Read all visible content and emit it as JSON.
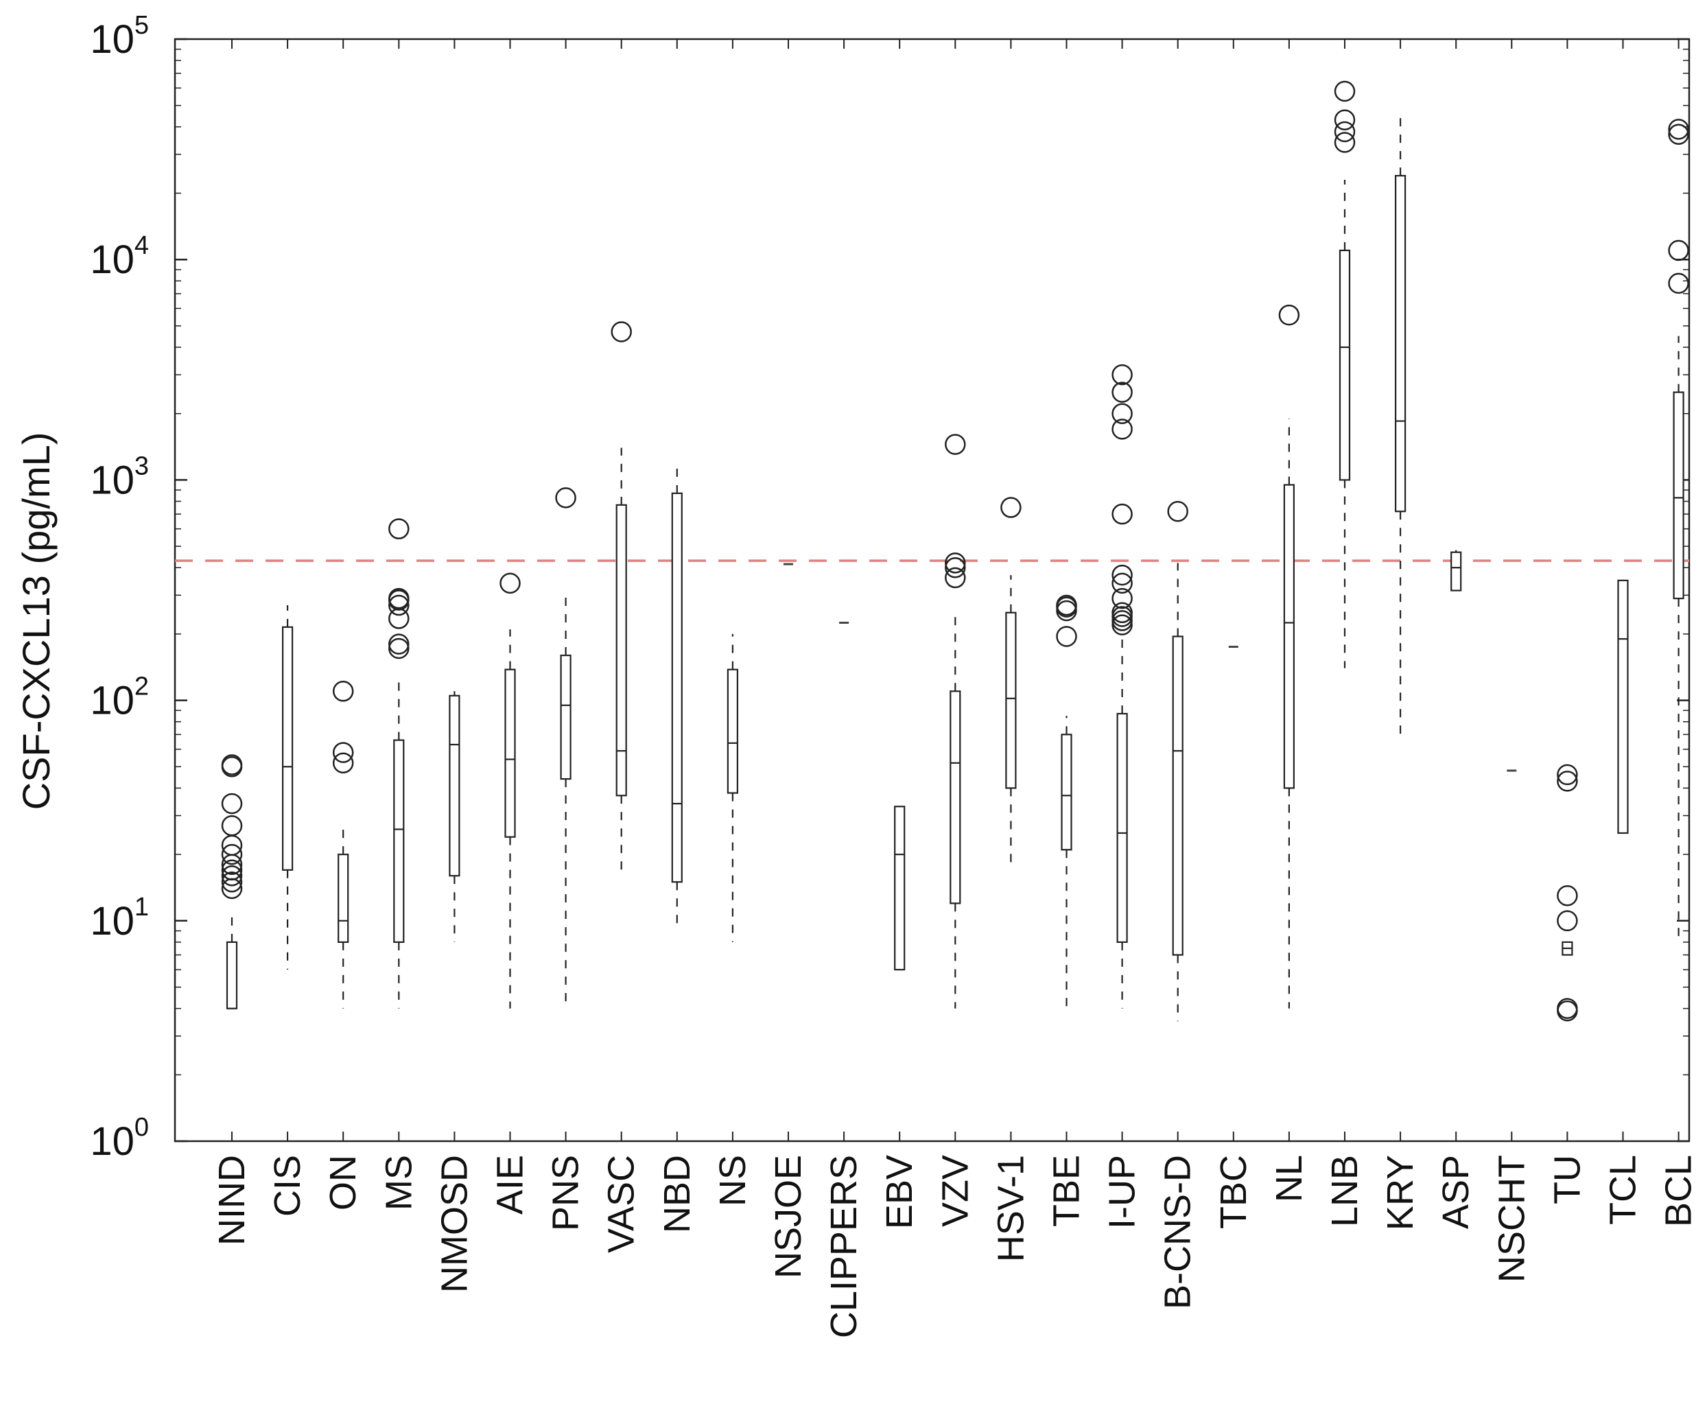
{
  "chart_data": {
    "type": "box",
    "title": "",
    "xlabel": "",
    "ylabel": "CSF-CXCL13 (pg/mL)",
    "yscale": "log",
    "ylim": [
      1,
      100000
    ],
    "ytick_labels": [
      {
        "base": "10",
        "exp": "0"
      },
      {
        "base": "10",
        "exp": "1"
      },
      {
        "base": "10",
        "exp": "2"
      },
      {
        "base": "10",
        "exp": "3"
      },
      {
        "base": "10",
        "exp": "4"
      },
      {
        "base": "10",
        "exp": "5"
      }
    ],
    "grid": false,
    "reference_line": {
      "y": 430,
      "color": "#e08080",
      "style": "dashed"
    },
    "categories": [
      "NIND",
      "CIS",
      "ON",
      "MS",
      "NMOSD",
      "AIE",
      "PNS",
      "VASC",
      "NBD",
      "NS",
      "NSJOE",
      "CLIPPERS",
      "EBV",
      "VZV",
      "HSV-1",
      "TBE",
      "I-UP",
      "B-CNS-D",
      "TBC",
      "NL",
      "LNB",
      "KRY",
      "ASP",
      "NSCHT",
      "TU",
      "TCL",
      "BCL"
    ],
    "boxes": [
      {
        "q1": 4,
        "median": 4,
        "q3": 8,
        "wlo": 4,
        "whi": 11,
        "outliers": [
          14,
          15,
          16,
          17,
          18,
          20,
          22,
          27,
          34,
          50,
          51
        ]
      },
      {
        "q1": 17,
        "median": 50,
        "q3": 215,
        "wlo": 6,
        "whi": 270,
        "outliers": []
      },
      {
        "q1": 8,
        "median": 10,
        "q3": 20,
        "wlo": 4,
        "whi": 28,
        "outliers": [
          52,
          58,
          110
        ]
      },
      {
        "q1": 8,
        "median": 26,
        "q3": 66,
        "wlo": 4,
        "whi": 125,
        "outliers": [
          172,
          180,
          235,
          270,
          285,
          290,
          600
        ]
      },
      {
        "q1": 16,
        "median": 63,
        "q3": 105,
        "wlo": 8,
        "whi": 110,
        "outliers": []
      },
      {
        "q1": 24,
        "median": 54,
        "q3": 138,
        "wlo": 4,
        "whi": 210,
        "outliers": [
          340
        ]
      },
      {
        "q1": 44,
        "median": 95,
        "q3": 160,
        "wlo": 4,
        "whi": 300,
        "outliers": [
          830
        ]
      },
      {
        "q1": 37,
        "median": 59,
        "q3": 770,
        "wlo": 17,
        "whi": 1400,
        "outliers": [
          4700
        ]
      },
      {
        "q1": 15,
        "median": 34,
        "q3": 870,
        "wlo": 9,
        "whi": 1150,
        "outliers": []
      },
      {
        "q1": 38,
        "median": 64,
        "q3": 138,
        "wlo": 8,
        "whi": 200,
        "outliers": []
      },
      {
        "q1": 415,
        "median": 415,
        "q3": 415,
        "wlo": 415,
        "whi": 415,
        "outliers": []
      },
      {
        "q1": 225,
        "median": 225,
        "q3": 225,
        "wlo": 225,
        "whi": 225,
        "outliers": []
      },
      {
        "q1": 6,
        "median": 20,
        "q3": 33,
        "wlo": 6,
        "whi": 33,
        "outliers": []
      },
      {
        "q1": 12,
        "median": 52,
        "q3": 110,
        "wlo": 4,
        "whi": 240,
        "outliers": [
          360,
          400,
          420,
          1450
        ]
      },
      {
        "q1": 40,
        "median": 102,
        "q3": 250,
        "wlo": 17,
        "whi": 370,
        "outliers": [
          750
        ]
      },
      {
        "q1": 21,
        "median": 37,
        "q3": 70,
        "wlo": 4,
        "whi": 85,
        "outliers": [
          195,
          255,
          265,
          270
        ]
      },
      {
        "q1": 8,
        "median": 25,
        "q3": 87,
        "wlo": 4,
        "whi": 205,
        "outliers": [
          220,
          230,
          240,
          250,
          290,
          340,
          370,
          700,
          1700,
          2000,
          2500,
          3000
        ]
      },
      {
        "q1": 7,
        "median": 59,
        "q3": 195,
        "wlo": 3.5,
        "whi": 420,
        "outliers": [
          720
        ]
      },
      {
        "q1": 175,
        "median": 175,
        "q3": 175,
        "wlo": 175,
        "whi": 175,
        "outliers": []
      },
      {
        "q1": 40,
        "median": 225,
        "q3": 950,
        "wlo": 4,
        "whi": 1900,
        "outliers": [
          5600
        ]
      },
      {
        "q1": 1000,
        "median": 4000,
        "q3": 11000,
        "wlo": 140,
        "whi": 23000,
        "outliers": [
          34000,
          38000,
          43000,
          58000
        ]
      },
      {
        "q1": 720,
        "median": 1850,
        "q3": 24000,
        "wlo": 65,
        "whi": 45000,
        "outliers": []
      },
      {
        "q1": 315,
        "median": 400,
        "q3": 470,
        "wlo": 315,
        "whi": 480,
        "outliers": []
      },
      {
        "q1": 48,
        "median": 48,
        "q3": 48,
        "wlo": 48,
        "whi": 48,
        "outliers": []
      },
      {
        "q1": 7,
        "median": 7.5,
        "q3": 8,
        "wlo": 7,
        "whi": 8,
        "outliers": [
          3.9,
          4.0,
          10,
          13,
          43,
          46
        ]
      },
      {
        "q1": 25,
        "median": 190,
        "q3": 350,
        "wlo": 25,
        "whi": 350,
        "outliers": []
      },
      {
        "q1": 290,
        "median": 830,
        "q3": 2500,
        "wlo": 8,
        "whi": 4500,
        "outliers": [
          7800,
          11000,
          37000,
          39000
        ]
      }
    ]
  }
}
